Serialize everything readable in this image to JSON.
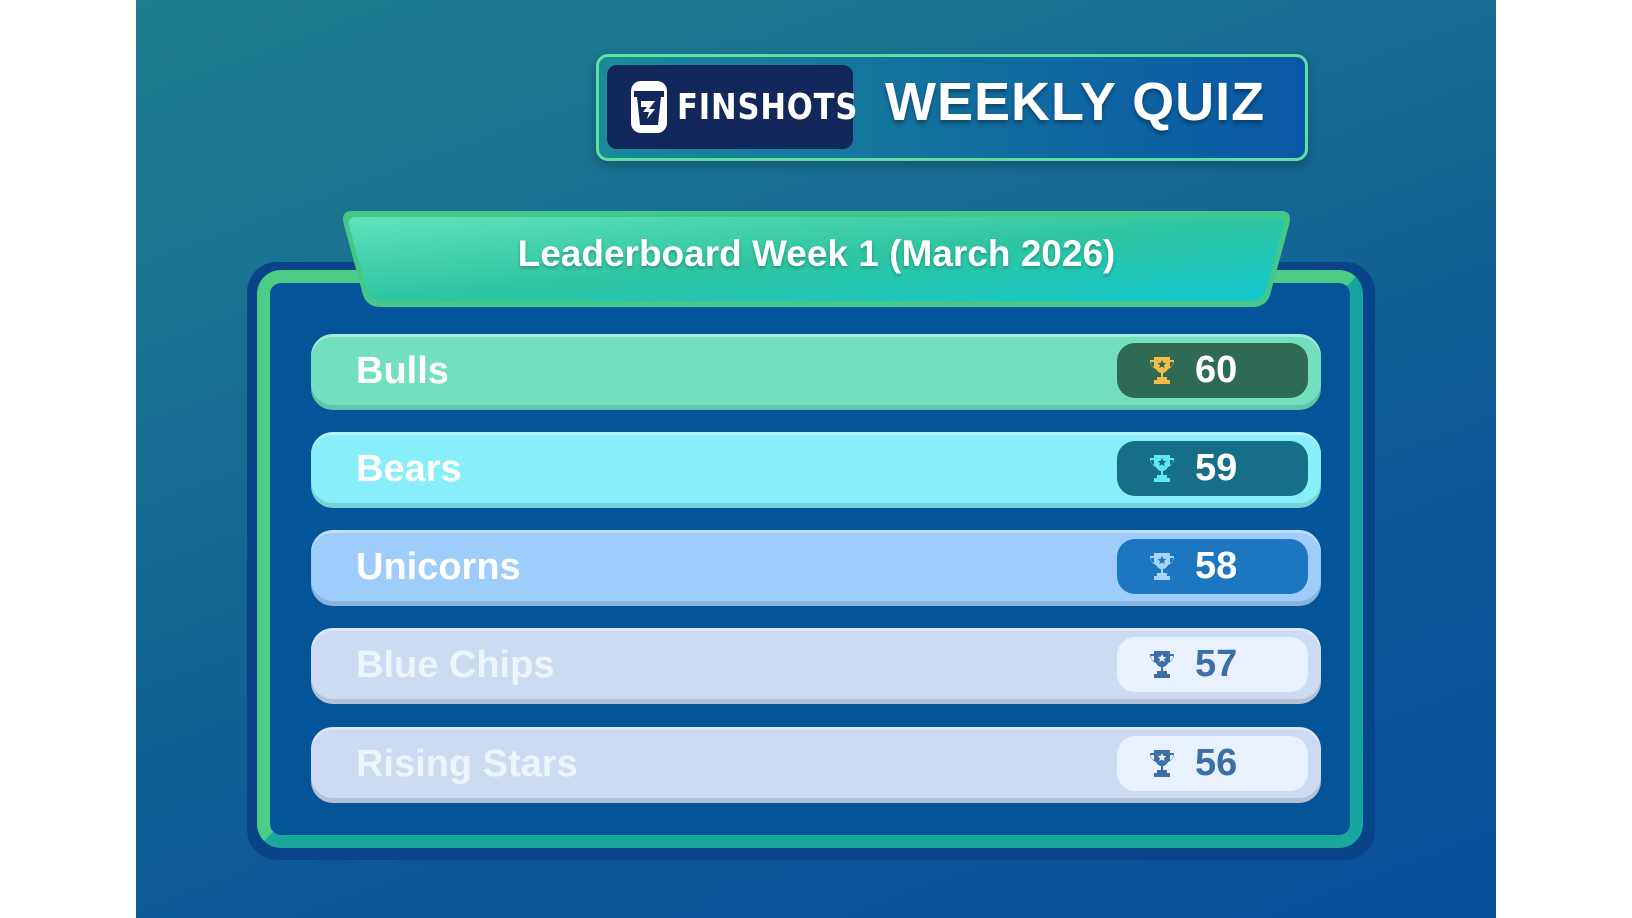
{
  "header": {
    "brand": "FINSHOTS",
    "title": "WEEKLY QUIZ"
  },
  "leaderboard": {
    "title": "Leaderboard Week 1 (March 2026)",
    "teams": [
      {
        "name": "Bulls",
        "score": "60",
        "row_color": "#74dfbf",
        "pill_color": "#2e6a54",
        "trophy_color": "#f5bd45",
        "name_color": "#ffffff",
        "score_color": "#ffffff"
      },
      {
        "name": "Bears",
        "score": "59",
        "row_color": "#88eef9",
        "pill_color": "#166f86",
        "trophy_color": "#5ee9f2",
        "name_color": "#ffffff",
        "score_color": "#ffffff"
      },
      {
        "name": "Unicorns",
        "score": "58",
        "row_color": "#9fcdfb",
        "pill_color": "#1d76c0",
        "trophy_color": "#a7d3f7",
        "name_color": "#ffffff",
        "score_color": "#ffffff"
      },
      {
        "name": "Blue Chips",
        "score": "57",
        "row_color": "#cddbf2",
        "pill_color": "#e8f1fd",
        "trophy_color": "#3c6fa6",
        "name_color": "#eef4fc",
        "score_color": "#3c6fa6"
      },
      {
        "name": "Rising Stars",
        "score": "56",
        "row_color": "#cddbf2",
        "pill_color": "#e8f1fd",
        "trophy_color": "#3c6fa6",
        "name_color": "#eef4fc",
        "score_color": "#3c6fa6"
      }
    ]
  }
}
